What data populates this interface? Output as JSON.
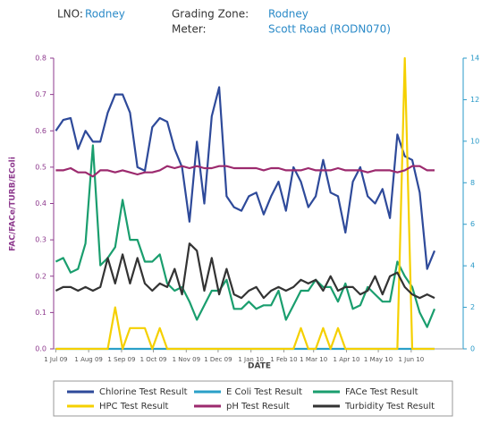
{
  "header": {
    "lno_label": "LNO:",
    "lno_value": "Rodney",
    "zone_label": "Grading Zone:",
    "zone_value": "Rodney",
    "meter_label": "Meter:",
    "meter_value": "Scott Road (RODN070)"
  },
  "chart_data": {
    "type": "line",
    "ylabel": "FAC/FACe/TURB/EColi",
    "xlabel": "DATE",
    "x": [
      "2009-07-01",
      "2009-07-08",
      "2009-07-15",
      "2009-07-22",
      "2009-07-29",
      "2009-08-05",
      "2009-08-12",
      "2009-08-19",
      "2009-08-26",
      "2009-09-02",
      "2009-09-09",
      "2009-09-16",
      "2009-09-23",
      "2009-09-30",
      "2009-10-07",
      "2009-10-14",
      "2009-10-21",
      "2009-10-28",
      "2009-11-04",
      "2009-11-11",
      "2009-11-18",
      "2009-11-25",
      "2009-12-02",
      "2009-12-09",
      "2009-12-16",
      "2009-12-23",
      "2009-12-30",
      "2010-01-06",
      "2010-01-13",
      "2010-01-20",
      "2010-01-27",
      "2010-02-03",
      "2010-02-10",
      "2010-02-17",
      "2010-02-24",
      "2010-03-03",
      "2010-03-10",
      "2010-03-17",
      "2010-03-24",
      "2010-03-31",
      "2010-04-07",
      "2010-04-14",
      "2010-04-21",
      "2010-04-28",
      "2010-05-05",
      "2010-05-12",
      "2010-05-19",
      "2010-05-26",
      "2010-06-02",
      "2010-06-09",
      "2010-06-16",
      "2010-06-23"
    ],
    "xlim": [
      "2009-06-29",
      "2010-07-20"
    ],
    "xticks": [
      {
        "value": "2009-07-01",
        "label": "1 Jul 09"
      },
      {
        "value": "2009-08-01",
        "label": "1 Aug 09"
      },
      {
        "value": "2009-09-01",
        "label": "1 Sep 09"
      },
      {
        "value": "2009-10-01",
        "label": "1 Oct 09"
      },
      {
        "value": "2009-11-01",
        "label": "1 Nov 09"
      },
      {
        "value": "2009-12-01",
        "label": "1 Dec 09"
      },
      {
        "value": "2010-01-01",
        "label": "1 Jan 10"
      },
      {
        "value": "2010-02-01",
        "label": "1 Feb 10"
      },
      {
        "value": "2010-03-01",
        "label": "1 Mar 10"
      },
      {
        "value": "2010-04-01",
        "label": "1 Apr 10"
      },
      {
        "value": "2010-05-01",
        "label": "1 May 10"
      },
      {
        "value": "2010-06-01",
        "label": "1 Jun 10"
      }
    ],
    "ylim": [
      0,
      0.8
    ],
    "yticks": [
      {
        "value": 0,
        "label": "0.0"
      },
      0.1,
      0.2,
      0.3,
      0.4,
      0.5,
      0.6,
      0.7,
      0.8
    ],
    "y2lim": [
      0,
      14
    ],
    "y2ticks": [
      0,
      2,
      4,
      6,
      8,
      10,
      12,
      14
    ],
    "left_axis_color": "#8e3a8e",
    "right_axis_color": "#2a9ac8",
    "series": [
      {
        "name": "Chlorine Test Result",
        "color": "#2e4a9a",
        "values": [
          0.6,
          0.63,
          0.635,
          0.55,
          0.6,
          0.57,
          0.57,
          0.65,
          0.7,
          0.7,
          0.65,
          0.5,
          0.49,
          0.61,
          0.635,
          0.625,
          0.55,
          0.5,
          0.35,
          0.57,
          0.4,
          0.64,
          0.72,
          0.42,
          0.39,
          0.38,
          0.42,
          0.43,
          0.37,
          0.42,
          0.46,
          0.38,
          0.5,
          0.46,
          0.39,
          0.42,
          0.52,
          0.43,
          0.42,
          0.32,
          0.46,
          0.5,
          0.42,
          0.4,
          0.44,
          0.36,
          0.59,
          0.53,
          0.52,
          0.43,
          0.22,
          0.27
        ]
      },
      {
        "name": "E Coli Test Result",
        "color": "#2aa0c8",
        "axis": "y2",
        "values": [
          0,
          0,
          0,
          0,
          0,
          0,
          0,
          0,
          0,
          0,
          0,
          0,
          0,
          0,
          0,
          0,
          0,
          0,
          0,
          0,
          0,
          0,
          0,
          0,
          0,
          0,
          0,
          0,
          0,
          0,
          0,
          0,
          0,
          0,
          0,
          0,
          0,
          0,
          0,
          0,
          0,
          0,
          0,
          0,
          0,
          0,
          0,
          0,
          0,
          0,
          0,
          0
        ]
      },
      {
        "name": "FACe Test Result",
        "color": "#1a9e6e",
        "values": [
          0.24,
          0.25,
          0.21,
          0.22,
          0.29,
          0.56,
          0.23,
          0.25,
          0.28,
          0.41,
          0.3,
          0.3,
          0.24,
          0.24,
          0.26,
          0.18,
          0.16,
          0.17,
          0.13,
          0.08,
          0.12,
          0.16,
          0.16,
          0.19,
          0.11,
          0.11,
          0.13,
          0.11,
          0.12,
          0.12,
          0.16,
          0.08,
          0.12,
          0.16,
          0.16,
          0.19,
          0.17,
          0.17,
          0.13,
          0.18,
          0.11,
          0.12,
          0.17,
          0.15,
          0.13,
          0.13,
          0.24,
          0.2,
          0.17,
          0.1,
          0.06,
          0.11
        ]
      },
      {
        "name": "HPC Test Result",
        "color": "#f5d000",
        "axis": "y2",
        "values": [
          0,
          0,
          0,
          0,
          0,
          0,
          0,
          0,
          2,
          0,
          1,
          1,
          1,
          0,
          1,
          0,
          0,
          0,
          0,
          0,
          0,
          0,
          0,
          0,
          0,
          0,
          0,
          0,
          0,
          0,
          0,
          0,
          0,
          1,
          0,
          0,
          1,
          0,
          1,
          0,
          0,
          0,
          0,
          0,
          0,
          0,
          0,
          14,
          0,
          0,
          0,
          0
        ]
      },
      {
        "name": "pH Test Result",
        "color": "#9c2a6e",
        "axis": "y2",
        "values": [
          8.6,
          8.6,
          8.7,
          8.5,
          8.5,
          8.3,
          8.6,
          8.6,
          8.5,
          8.6,
          8.5,
          8.4,
          8.5,
          8.5,
          8.6,
          8.8,
          8.7,
          8.8,
          8.7,
          8.8,
          8.7,
          8.7,
          8.8,
          8.8,
          8.7,
          8.7,
          8.7,
          8.7,
          8.6,
          8.7,
          8.7,
          8.6,
          8.6,
          8.6,
          8.7,
          8.6,
          8.6,
          8.6,
          8.7,
          8.6,
          8.6,
          8.6,
          8.5,
          8.6,
          8.6,
          8.6,
          8.5,
          8.6,
          8.8,
          8.8,
          8.6,
          8.6
        ]
      },
      {
        "name": "Turbidity Test Result",
        "color": "#333333",
        "values": [
          0.16,
          0.17,
          0.17,
          0.16,
          0.17,
          0.16,
          0.17,
          0.25,
          0.18,
          0.26,
          0.18,
          0.25,
          0.18,
          0.16,
          0.18,
          0.17,
          0.22,
          0.15,
          0.29,
          0.27,
          0.16,
          0.25,
          0.15,
          0.22,
          0.15,
          0.14,
          0.16,
          0.17,
          0.14,
          0.16,
          0.17,
          0.16,
          0.17,
          0.19,
          0.18,
          0.19,
          0.16,
          0.2,
          0.16,
          0.17,
          0.17,
          0.15,
          0.16,
          0.2,
          0.15,
          0.2,
          0.21,
          0.17,
          0.15,
          0.14,
          0.15,
          0.14
        ]
      }
    ]
  }
}
